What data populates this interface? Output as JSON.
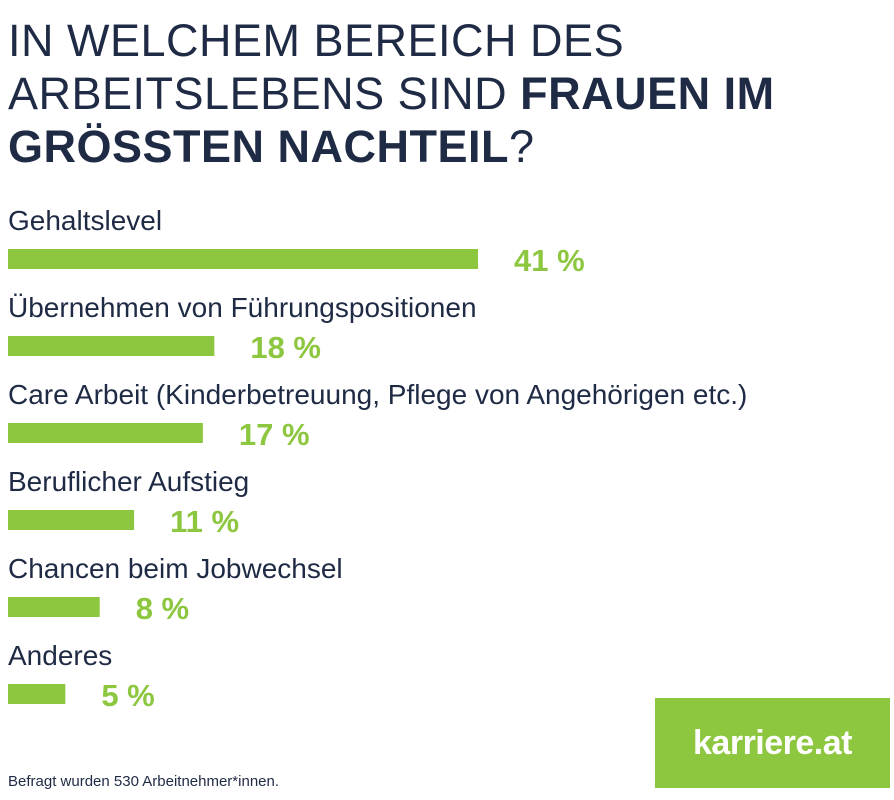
{
  "title": {
    "part1": "In welchem Bereich des Arbeitslebens sind ",
    "part2": "Frauen im grössten Nachteil",
    "part3": "?"
  },
  "colors": {
    "bar": "#8dc63f",
    "value_text": "#8dc63f",
    "text": "#1f2a44",
    "logo_bg": "#8dc63f"
  },
  "chart_data": {
    "type": "bar",
    "orientation": "horizontal",
    "categories": [
      "Gehaltslevel",
      "Übernehmen von Führungspositionen",
      "Care Arbeit (Kinderbetreuung, Pflege von Angehörigen etc.)",
      "Beruflicher Aufstieg",
      "Chancen beim Jobwechsel",
      "Anderes"
    ],
    "values": [
      41,
      18,
      17,
      11,
      8,
      5
    ],
    "value_labels": [
      "41 %",
      "18 %",
      "17 %",
      "11 %",
      "8 %",
      "5 %"
    ],
    "unit": "%",
    "xlim": [
      0,
      41
    ],
    "grid": false
  },
  "logo": {
    "text": "karriere.at"
  },
  "footnote": "Befragt wurden 530 Arbeitnehmer*innen."
}
